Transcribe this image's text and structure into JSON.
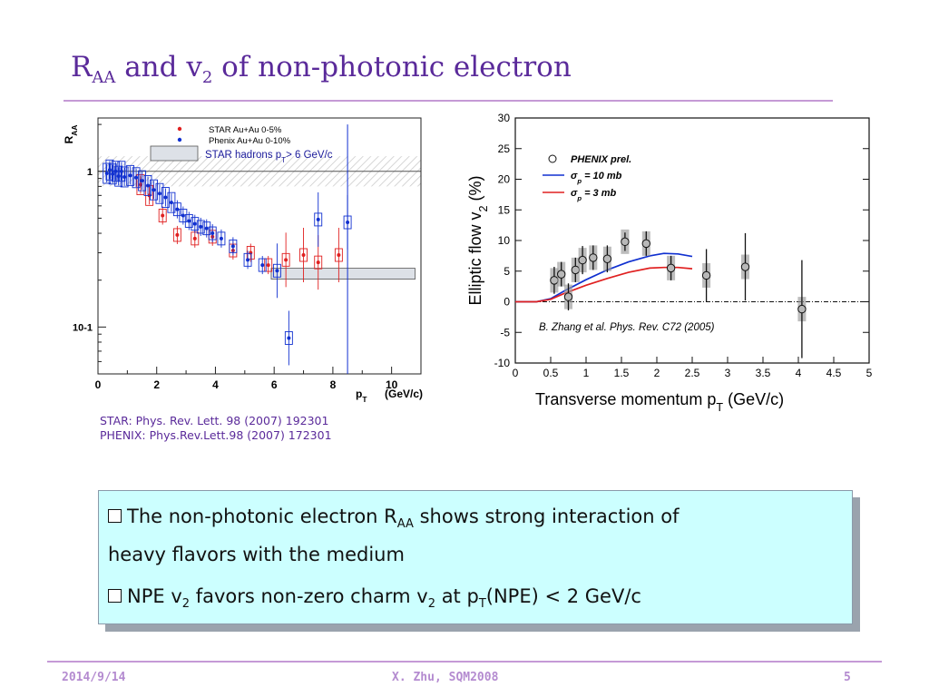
{
  "slide": {
    "title_main": "R",
    "title_sub": "AA",
    "title_mid": " and v",
    "title_sub2": "2",
    "title_end": " of non-photonic electron",
    "ref_star": "STAR: Phys. Rev. Lett. 98 (2007) 192301",
    "ref_phenix": "PHENIX: Phys.Rev.Lett.98 (2007) 172301",
    "bullet1_a": "The non-photonic electron R",
    "bullet1_sub": "AA",
    "bullet1_b": " shows strong interaction of",
    "bullet1_c": "heavy flavors with the medium",
    "bullet2_a": "NPE v",
    "bullet2_sub": "2",
    "bullet2_b": " favors non-zero charm v",
    "bullet2_sub2": "2",
    "bullet2_c": " at p",
    "bullet2_sub3": "T",
    "bullet2_d": "(NPE) < 2 GeV/c",
    "footer_date": "2014/9/14",
    "footer_author": "X. Zhu, SQM2008",
    "footer_page": "5",
    "colors": {
      "title": "#5a2a9a",
      "rule": "#c59ad6",
      "callout_bg": "#ccffff"
    }
  },
  "chart_data": [
    {
      "type": "scatter",
      "ylabel": "R",
      "ylabel_sub": "AA",
      "xlabel": "p",
      "xlabel_sub": "T",
      "xlabel_unit": "(GeV/c)",
      "xlim": [
        0,
        11
      ],
      "ylim": [
        0.05,
        2.2
      ],
      "yscale": "log",
      "x_ticks": [
        "0",
        "2",
        "4",
        "6",
        "8",
        "10"
      ],
      "y_ticks": [
        {
          "v": 1,
          "label": "1"
        },
        {
          "v": 0.1,
          "label": "10-1"
        }
      ],
      "legend": [
        {
          "name": "STAR Au+Au 0-5%",
          "color": "#e02020"
        },
        {
          "name": "Phenix Au+Au  0-10%",
          "color": "#1030d0"
        }
      ],
      "band_label": "STAR hadrons p",
      "band_label_sub": "T",
      "band_label_end": "> 6 GeV/c",
      "series": [
        {
          "name": "STAR Au+Au 0-5%",
          "color": "#e02020",
          "points": [
            [
              1.45,
              0.82
            ],
            [
              1.75,
              0.7
            ],
            [
              2.2,
              0.52
            ],
            [
              2.7,
              0.39
            ],
            [
              3.3,
              0.37
            ],
            [
              3.9,
              0.38
            ],
            [
              4.6,
              0.31
            ],
            [
              5.2,
              0.3
            ],
            [
              5.8,
              0.25
            ],
            [
              6.4,
              0.27
            ],
            [
              7.0,
              0.29
            ],
            [
              7.5,
              0.26
            ],
            [
              8.2,
              0.29
            ]
          ]
        },
        {
          "name": "Phenix Au+Au  0-10%",
          "color": "#1030d0",
          "points": [
            [
              0.3,
              0.97
            ],
            [
              0.4,
              1.02
            ],
            [
              0.5,
              0.96
            ],
            [
              0.6,
              1.0
            ],
            [
              0.7,
              0.93
            ],
            [
              0.8,
              1.0
            ],
            [
              0.9,
              0.92
            ],
            [
              1.1,
              0.94
            ],
            [
              1.3,
              0.91
            ],
            [
              1.5,
              0.87
            ],
            [
              1.7,
              0.81
            ],
            [
              1.9,
              0.76
            ],
            [
              2.1,
              0.72
            ],
            [
              2.3,
              0.68
            ],
            [
              2.5,
              0.63
            ],
            [
              2.7,
              0.57
            ],
            [
              2.9,
              0.52
            ],
            [
              3.1,
              0.48
            ],
            [
              3.3,
              0.46
            ],
            [
              3.5,
              0.44
            ],
            [
              3.7,
              0.43
            ],
            [
              3.9,
              0.4
            ],
            [
              4.2,
              0.37
            ],
            [
              4.6,
              0.33
            ],
            [
              5.1,
              0.27
            ],
            [
              5.6,
              0.25
            ],
            [
              6.1,
              0.23
            ],
            [
              6.5,
              0.085
            ],
            [
              7.5,
              0.49
            ],
            [
              8.5,
              0.47
            ]
          ]
        }
      ],
      "band": {
        "y": 0.22,
        "xmin": 5.9,
        "xmax": 10.8
      }
    },
    {
      "type": "scatter",
      "ylabel": "Elliptic flow v",
      "ylabel_sub": "2",
      "ylabel_unit": " (%)",
      "xlabel": "Transverse momentum p",
      "xlabel_sub": "T",
      "xlabel_unit": " (GeV/c)",
      "xlim": [
        0,
        5
      ],
      "ylim": [
        -10,
        30
      ],
      "x_ticks": [
        "0",
        "0.5",
        "1",
        "1.5",
        "2",
        "2.5",
        "3",
        "3.5",
        "4",
        "4.5",
        "5"
      ],
      "y_ticks": [
        "-10",
        "-5",
        "0",
        "5",
        "10",
        "15",
        "20",
        "25",
        "30"
      ],
      "legend": [
        {
          "name": "PHENIX prel.",
          "marker": "circle"
        },
        {
          "name": "sigma_p = 10 mb",
          "label": "σ",
          "label_sub": "p",
          "label_end": " = 10 mb",
          "color": "#1030d0"
        },
        {
          "name": "sigma_p = 3 mb",
          "label": "σ",
          "label_sub": "p",
          "label_end": " = 3 mb",
          "color": "#e02020"
        }
      ],
      "annotation": "B. Zhang et al. Phys. Rev. C72 (2005)",
      "points": [
        {
          "x": 0.55,
          "y": 3.5,
          "err": 2.2
        },
        {
          "x": 0.65,
          "y": 4.5,
          "err": 2.0
        },
        {
          "x": 0.75,
          "y": 0.8,
          "err": 2.2
        },
        {
          "x": 0.85,
          "y": 5.2,
          "err": 2.0
        },
        {
          "x": 0.95,
          "y": 6.8,
          "err": 2.3
        },
        {
          "x": 1.1,
          "y": 7.2,
          "err": 2.0
        },
        {
          "x": 1.3,
          "y": 7.0,
          "err": 2.2
        },
        {
          "x": 1.55,
          "y": 9.8,
          "err": 1.5
        },
        {
          "x": 1.85,
          "y": 9.5,
          "err": 2.0
        },
        {
          "x": 2.2,
          "y": 5.5,
          "err": 2.0
        },
        {
          "x": 2.7,
          "y": 4.3,
          "err": 4.3
        },
        {
          "x": 3.25,
          "y": 5.7,
          "err": 5.5
        },
        {
          "x": 4.05,
          "y": -1.2,
          "err": 8.0
        }
      ],
      "curves": [
        {
          "name": "sigma_p = 10 mb",
          "color": "#1030d0",
          "points": [
            [
              0,
              0
            ],
            [
              0.3,
              0
            ],
            [
              0.5,
              0.5
            ],
            [
              0.7,
              1.8
            ],
            [
              1.0,
              3.6
            ],
            [
              1.3,
              5.2
            ],
            [
              1.6,
              6.5
            ],
            [
              1.9,
              7.5
            ],
            [
              2.1,
              7.9
            ],
            [
              2.3,
              7.8
            ],
            [
              2.5,
              7.4
            ]
          ]
        },
        {
          "name": "sigma_p = 3 mb",
          "color": "#e02020",
          "points": [
            [
              0,
              0
            ],
            [
              0.3,
              0
            ],
            [
              0.5,
              0.4
            ],
            [
              0.7,
              1.4
            ],
            [
              1.0,
              2.7
            ],
            [
              1.3,
              3.8
            ],
            [
              1.6,
              4.8
            ],
            [
              1.9,
              5.5
            ],
            [
              2.1,
              5.6
            ],
            [
              2.3,
              5.6
            ],
            [
              2.5,
              5.4
            ]
          ]
        }
      ]
    }
  ]
}
